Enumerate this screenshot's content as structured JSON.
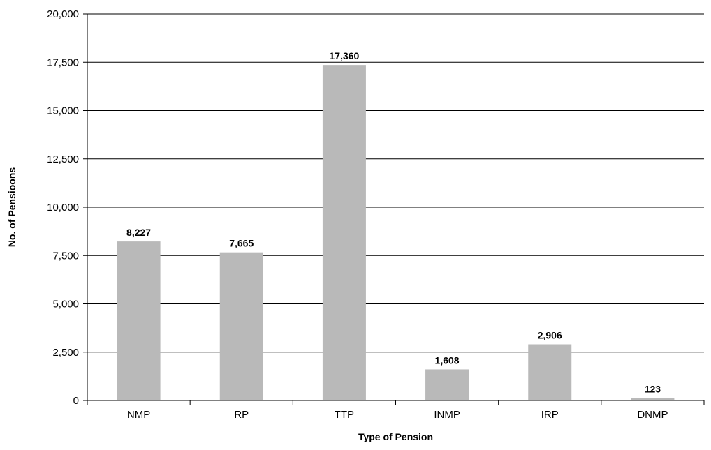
{
  "chart_data": {
    "type": "bar",
    "title": "",
    "xlabel": "Type of Pension",
    "ylabel": "No. of Pensioons",
    "categories": [
      "NMP",
      "RP",
      "TTP",
      "INMP",
      "IRP",
      "DNMP"
    ],
    "values": [
      8227,
      7665,
      17360,
      1608,
      2906,
      123
    ],
    "value_labels": [
      "8,227",
      "7,665",
      "17,360",
      "1,608",
      "2,906",
      "123"
    ],
    "ylim": [
      0,
      20000
    ],
    "yticks": [
      0,
      2500,
      5000,
      7500,
      10000,
      12500,
      15000,
      17500,
      20000
    ],
    "ytick_labels": [
      "0",
      "2,500",
      "5,000",
      "7,500",
      "10,000",
      "12,500",
      "15,000",
      "17,500",
      "20,000"
    ],
    "grid": true,
    "legend": "none",
    "bar_color": "#b9b9b9",
    "grid_color": "#000000"
  }
}
